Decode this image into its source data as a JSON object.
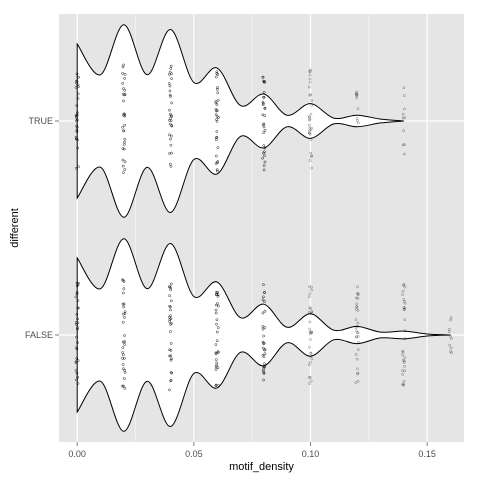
{
  "chart_data": {
    "type": "violin",
    "xlabel": "motif_density",
    "ylabel": "different",
    "xlim": [
      -0.0078,
      0.1658
    ],
    "x_ticks": [
      0.0,
      0.05,
      0.1,
      0.15
    ],
    "x_tick_labels": [
      "0.00",
      "0.05",
      "0.10",
      "0.15"
    ],
    "categories": [
      "TRUE",
      "FALSE"
    ],
    "grid": true,
    "panel_background": "#e5e5e5",
    "grid_color": "#ffffff",
    "violin_fill": "#ffffff",
    "violin_stroke": "#000000",
    "point_color": "#000000",
    "series": [
      {
        "category": "TRUE",
        "max_value": 0.14,
        "width_profile": [
          {
            "x": 0.0,
            "w": 0.8
          },
          {
            "x": 0.01,
            "w": 0.48
          },
          {
            "x": 0.02,
            "w": 1.0
          },
          {
            "x": 0.03,
            "w": 0.48
          },
          {
            "x": 0.04,
            "w": 0.95
          },
          {
            "x": 0.05,
            "w": 0.4
          },
          {
            "x": 0.06,
            "w": 0.55
          },
          {
            "x": 0.07,
            "w": 0.16
          },
          {
            "x": 0.08,
            "w": 0.28
          },
          {
            "x": 0.09,
            "w": 0.06
          },
          {
            "x": 0.1,
            "w": 0.18
          },
          {
            "x": 0.11,
            "w": 0.03
          },
          {
            "x": 0.12,
            "w": 0.06
          },
          {
            "x": 0.13,
            "w": 0.02
          },
          {
            "x": 0.14,
            "w": 0.0
          }
        ],
        "point_columns": [
          {
            "x": 0.0,
            "spread": 0.54
          },
          {
            "x": 0.02,
            "spread": 0.59
          },
          {
            "x": 0.04,
            "spread": 0.58
          },
          {
            "x": 0.06,
            "spread": 0.55
          },
          {
            "x": 0.08,
            "spread": 0.55
          },
          {
            "x": 0.1,
            "spread": 0.53
          },
          {
            "x": 0.12,
            "spread": 0.34
          },
          {
            "x": 0.14,
            "spread": 0.44
          }
        ]
      },
      {
        "category": "FALSE",
        "max_value": 0.16,
        "width_profile": [
          {
            "x": 0.0,
            "w": 0.8
          },
          {
            "x": 0.01,
            "w": 0.48
          },
          {
            "x": 0.02,
            "w": 1.0
          },
          {
            "x": 0.03,
            "w": 0.48
          },
          {
            "x": 0.04,
            "w": 0.95
          },
          {
            "x": 0.05,
            "w": 0.4
          },
          {
            "x": 0.06,
            "w": 0.55
          },
          {
            "x": 0.07,
            "w": 0.18
          },
          {
            "x": 0.08,
            "w": 0.32
          },
          {
            "x": 0.09,
            "w": 0.08
          },
          {
            "x": 0.1,
            "w": 0.22
          },
          {
            "x": 0.11,
            "w": 0.05
          },
          {
            "x": 0.12,
            "w": 0.09
          },
          {
            "x": 0.13,
            "w": 0.03
          },
          {
            "x": 0.14,
            "w": 0.04
          },
          {
            "x": 0.15,
            "w": 0.01
          },
          {
            "x": 0.16,
            "w": 0.0
          }
        ],
        "point_columns": [
          {
            "x": 0.0,
            "spread": 0.54
          },
          {
            "x": 0.02,
            "spread": 0.59
          },
          {
            "x": 0.04,
            "spread": 0.58
          },
          {
            "x": 0.06,
            "spread": 0.55
          },
          {
            "x": 0.08,
            "spread": 0.55
          },
          {
            "x": 0.1,
            "spread": 0.53
          },
          {
            "x": 0.12,
            "spread": 0.53
          },
          {
            "x": 0.14,
            "spread": 0.53
          },
          {
            "x": 0.16,
            "spread": 0.22
          }
        ]
      }
    ]
  }
}
